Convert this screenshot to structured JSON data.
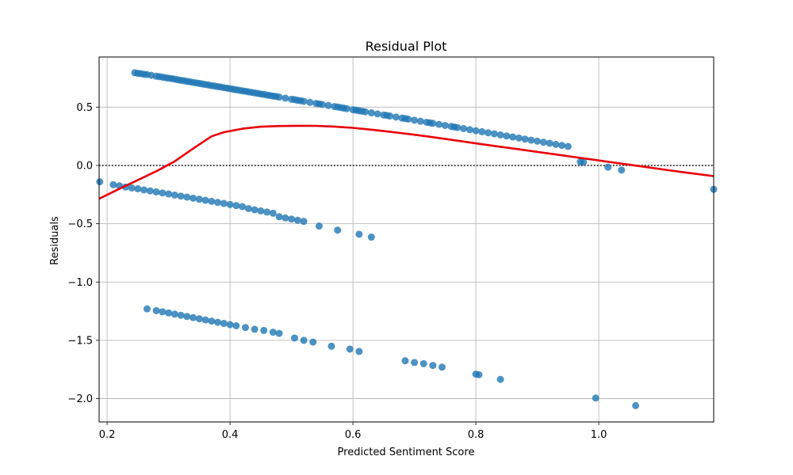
{
  "chart_data": {
    "type": "scatter",
    "title": "Residual Plot",
    "xlabel": "Predicted Sentiment Score",
    "ylabel": "Residuals",
    "xlim": [
      0.187,
      1.187
    ],
    "ylim": [
      -2.2,
      0.93
    ],
    "xticks": [
      0.2,
      0.4,
      0.6,
      0.8,
      1.0
    ],
    "xtick_labels": [
      "0.2",
      "0.4",
      "0.6",
      "0.8",
      "1.0"
    ],
    "yticks": [
      0.5,
      0.0,
      -0.5,
      -1.0,
      -1.5,
      -2.0
    ],
    "ytick_labels": [
      "0.5",
      "0.0",
      "−0.5",
      "−1.0",
      "−1.5",
      "−2.0"
    ],
    "grid": true,
    "reference_line": {
      "y": 0.0,
      "style": "dotted",
      "color": "#000000"
    },
    "colors": {
      "points": "#1f77b4",
      "smoother": "#e8000b"
    },
    "series": [
      {
        "kind": "points",
        "points": [
          [
            0.245,
            0.795
          ],
          [
            0.25,
            0.79
          ],
          [
            0.255,
            0.787
          ],
          [
            0.26,
            0.782
          ],
          [
            0.265,
            0.779
          ],
          [
            0.272,
            0.773
          ],
          [
            0.28,
            0.765
          ],
          [
            0.285,
            0.762
          ],
          [
            0.29,
            0.757
          ],
          [
            0.295,
            0.753
          ],
          [
            0.3,
            0.748
          ],
          [
            0.305,
            0.745
          ],
          [
            0.31,
            0.74
          ],
          [
            0.315,
            0.735
          ],
          [
            0.32,
            0.73
          ],
          [
            0.325,
            0.726
          ],
          [
            0.33,
            0.721
          ],
          [
            0.335,
            0.717
          ],
          [
            0.34,
            0.712
          ],
          [
            0.345,
            0.708
          ],
          [
            0.35,
            0.703
          ],
          [
            0.355,
            0.699
          ],
          [
            0.36,
            0.694
          ],
          [
            0.365,
            0.69
          ],
          [
            0.37,
            0.685
          ],
          [
            0.375,
            0.681
          ],
          [
            0.38,
            0.676
          ],
          [
            0.385,
            0.672
          ],
          [
            0.39,
            0.667
          ],
          [
            0.395,
            0.663
          ],
          [
            0.4,
            0.658
          ],
          [
            0.405,
            0.654
          ],
          [
            0.41,
            0.649
          ],
          [
            0.415,
            0.645
          ],
          [
            0.42,
            0.64
          ],
          [
            0.425,
            0.636
          ],
          [
            0.43,
            0.631
          ],
          [
            0.435,
            0.627
          ],
          [
            0.44,
            0.622
          ],
          [
            0.445,
            0.618
          ],
          [
            0.45,
            0.613
          ],
          [
            0.455,
            0.609
          ],
          [
            0.46,
            0.604
          ],
          [
            0.465,
            0.6
          ],
          [
            0.47,
            0.595
          ],
          [
            0.475,
            0.591
          ],
          [
            0.48,
            0.586
          ],
          [
            0.49,
            0.577
          ],
          [
            0.5,
            0.568
          ],
          [
            0.505,
            0.564
          ],
          [
            0.51,
            0.559
          ],
          [
            0.515,
            0.555
          ],
          [
            0.52,
            0.55
          ],
          [
            0.53,
            0.541
          ],
          [
            0.54,
            0.532
          ],
          [
            0.545,
            0.528
          ],
          [
            0.55,
            0.523
          ],
          [
            0.56,
            0.514
          ],
          [
            0.57,
            0.505
          ],
          [
            0.575,
            0.501
          ],
          [
            0.58,
            0.496
          ],
          [
            0.585,
            0.492
          ],
          [
            0.59,
            0.487
          ],
          [
            0.6,
            0.478
          ],
          [
            0.605,
            0.474
          ],
          [
            0.61,
            0.469
          ],
          [
            0.615,
            0.465
          ],
          [
            0.62,
            0.46
          ],
          [
            0.63,
            0.451
          ],
          [
            0.64,
            0.442
          ],
          [
            0.65,
            0.433
          ],
          [
            0.655,
            0.429
          ],
          [
            0.66,
            0.424
          ],
          [
            0.67,
            0.415
          ],
          [
            0.68,
            0.406
          ],
          [
            0.685,
            0.402
          ],
          [
            0.69,
            0.397
          ],
          [
            0.7,
            0.388
          ],
          [
            0.71,
            0.379
          ],
          [
            0.72,
            0.37
          ],
          [
            0.725,
            0.366
          ],
          [
            0.73,
            0.361
          ],
          [
            0.74,
            0.352
          ],
          [
            0.75,
            0.343
          ],
          [
            0.76,
            0.334
          ],
          [
            0.765,
            0.33
          ],
          [
            0.77,
            0.325
          ],
          [
            0.78,
            0.316
          ],
          [
            0.79,
            0.307
          ],
          [
            0.8,
            0.298
          ],
          [
            0.81,
            0.289
          ],
          [
            0.82,
            0.28
          ],
          [
            0.83,
            0.271
          ],
          [
            0.84,
            0.262
          ],
          [
            0.85,
            0.253
          ],
          [
            0.86,
            0.244
          ],
          [
            0.87,
            0.235
          ],
          [
            0.88,
            0.226
          ],
          [
            0.89,
            0.217
          ],
          [
            0.9,
            0.208
          ],
          [
            0.91,
            0.199
          ],
          [
            0.92,
            0.19
          ],
          [
            0.93,
            0.181
          ],
          [
            0.94,
            0.172
          ],
          [
            0.95,
            0.163
          ],
          [
            0.97,
            0.03
          ],
          [
            0.975,
            0.028
          ],
          [
            1.015,
            -0.015
          ],
          [
            1.037,
            -0.04
          ],
          [
            0.188,
            -0.14
          ],
          [
            0.21,
            -0.165
          ],
          [
            0.22,
            -0.175
          ],
          [
            0.23,
            -0.185
          ],
          [
            0.24,
            -0.193
          ],
          [
            0.25,
            -0.2
          ],
          [
            0.26,
            -0.21
          ],
          [
            0.27,
            -0.218
          ],
          [
            0.28,
            -0.227
          ],
          [
            0.29,
            -0.236
          ],
          [
            0.3,
            -0.245
          ],
          [
            0.31,
            -0.254
          ],
          [
            0.32,
            -0.263
          ],
          [
            0.33,
            -0.272
          ],
          [
            0.34,
            -0.281
          ],
          [
            0.35,
            -0.29
          ],
          [
            0.36,
            -0.299
          ],
          [
            0.37,
            -0.308
          ],
          [
            0.38,
            -0.317
          ],
          [
            0.39,
            -0.326
          ],
          [
            0.4,
            -0.335
          ],
          [
            0.41,
            -0.344
          ],
          [
            0.42,
            -0.353
          ],
          [
            0.43,
            -0.37
          ],
          [
            0.44,
            -0.38
          ],
          [
            0.45,
            -0.39
          ],
          [
            0.46,
            -0.4
          ],
          [
            0.47,
            -0.41
          ],
          [
            0.48,
            -0.44
          ],
          [
            0.49,
            -0.45
          ],
          [
            0.5,
            -0.46
          ],
          [
            0.51,
            -0.47
          ],
          [
            0.52,
            -0.48
          ],
          [
            0.545,
            -0.52
          ],
          [
            0.575,
            -0.555
          ],
          [
            0.61,
            -0.59
          ],
          [
            0.63,
            -0.615
          ],
          [
            1.187,
            -0.205
          ],
          [
            0.265,
            -1.23
          ],
          [
            0.28,
            -1.245
          ],
          [
            0.29,
            -1.255
          ],
          [
            0.3,
            -1.265
          ],
          [
            0.31,
            -1.275
          ],
          [
            0.32,
            -1.285
          ],
          [
            0.33,
            -1.295
          ],
          [
            0.34,
            -1.305
          ],
          [
            0.35,
            -1.315
          ],
          [
            0.36,
            -1.325
          ],
          [
            0.37,
            -1.335
          ],
          [
            0.38,
            -1.345
          ],
          [
            0.39,
            -1.355
          ],
          [
            0.4,
            -1.365
          ],
          [
            0.41,
            -1.375
          ],
          [
            0.425,
            -1.39
          ],
          [
            0.44,
            -1.405
          ],
          [
            0.455,
            -1.415
          ],
          [
            0.47,
            -1.43
          ],
          [
            0.48,
            -1.44
          ],
          [
            0.505,
            -1.48
          ],
          [
            0.52,
            -1.5
          ],
          [
            0.535,
            -1.515
          ],
          [
            0.565,
            -1.55
          ],
          [
            0.595,
            -1.575
          ],
          [
            0.61,
            -1.595
          ],
          [
            0.685,
            -1.675
          ],
          [
            0.7,
            -1.69
          ],
          [
            0.715,
            -1.7
          ],
          [
            0.73,
            -1.715
          ],
          [
            0.745,
            -1.73
          ],
          [
            0.8,
            -1.79
          ],
          [
            0.805,
            -1.795
          ],
          [
            0.84,
            -1.835
          ],
          [
            0.995,
            -1.995
          ],
          [
            1.06,
            -2.06
          ]
        ]
      },
      {
        "kind": "smoother",
        "points": [
          [
            0.187,
            -0.285
          ],
          [
            0.22,
            -0.2
          ],
          [
            0.25,
            -0.125
          ],
          [
            0.28,
            -0.05
          ],
          [
            0.31,
            0.035
          ],
          [
            0.34,
            0.145
          ],
          [
            0.37,
            0.25
          ],
          [
            0.39,
            0.285
          ],
          [
            0.42,
            0.315
          ],
          [
            0.45,
            0.332
          ],
          [
            0.48,
            0.338
          ],
          [
            0.51,
            0.34
          ],
          [
            0.54,
            0.339
          ],
          [
            0.57,
            0.333
          ],
          [
            0.6,
            0.322
          ],
          [
            0.63,
            0.307
          ],
          [
            0.66,
            0.289
          ],
          [
            0.69,
            0.27
          ],
          [
            0.72,
            0.25
          ],
          [
            0.75,
            0.228
          ],
          [
            0.78,
            0.205
          ],
          [
            0.81,
            0.182
          ],
          [
            0.84,
            0.16
          ],
          [
            0.87,
            0.138
          ],
          [
            0.9,
            0.116
          ],
          [
            0.93,
            0.094
          ],
          [
            0.96,
            0.072
          ],
          [
            0.99,
            0.05
          ],
          [
            1.02,
            0.028
          ],
          [
            1.05,
            0.006
          ],
          [
            1.08,
            -0.016
          ],
          [
            1.11,
            -0.038
          ],
          [
            1.14,
            -0.06
          ],
          [
            1.187,
            -0.092
          ]
        ]
      }
    ]
  }
}
